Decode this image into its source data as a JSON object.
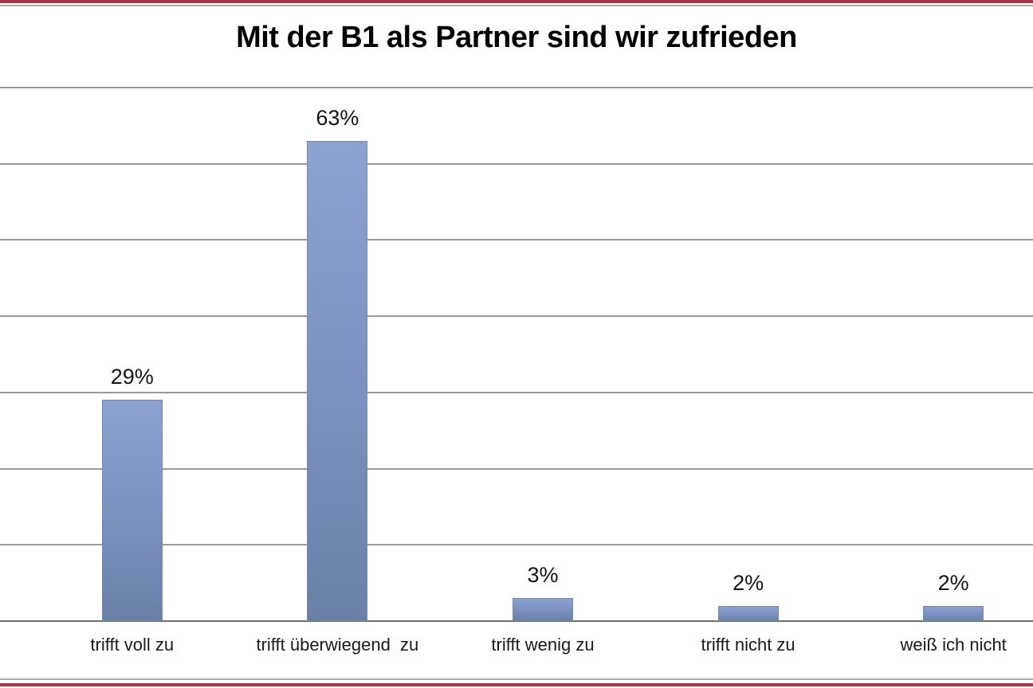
{
  "page": {
    "background": "#FFFFFF",
    "top_border_red": "#A53747",
    "top_border_gray": "#ABA8A2",
    "bottom_border_gray": "#ABABAB",
    "bottom_border_red": "#A53747"
  },
  "chart_data": {
    "type": "bar",
    "title": "Mit der B1 als Partner sind wir zufrieden",
    "categories": [
      "trifft voll zu",
      "trifft überwiegend  zu",
      "trifft wenig zu",
      "trifft nicht zu",
      "weiß ich nicht"
    ],
    "values": [
      29,
      63,
      3,
      2,
      2
    ],
    "data_labels": [
      "29%",
      "63%",
      "3%",
      "2%",
      "2%"
    ],
    "xlabel": "",
    "ylabel": "",
    "ylim": [
      0,
      70
    ],
    "gridline_step": 10,
    "grid": true,
    "legend": false,
    "y_tick_labels_visible": false,
    "bar_color_top": "#8CA2CF",
    "bar_color_mid": "#7E94C3",
    "bar_color_bottom": "#6A80A6",
    "bar_edge_color": "#7488B4",
    "gridline_color": "#9A9A9A",
    "axis_line_color": "#6F6F6F"
  }
}
